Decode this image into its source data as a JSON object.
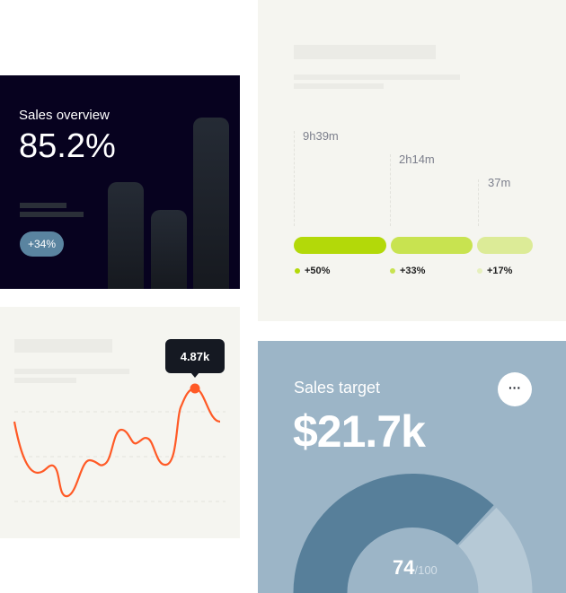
{
  "sales_overview": {
    "title": "Sales overview",
    "value": "85.2%",
    "badge": "+34%"
  },
  "line_card": {
    "tooltip": "4.87k",
    "line_color": "#ff5a26"
  },
  "time_card": {
    "items": [
      {
        "time": "9h39m",
        "change": "+50%",
        "color": "#b3d909"
      },
      {
        "time": "2h14m",
        "change": "+33%",
        "color": "#c8e350"
      },
      {
        "time": "37m",
        "change": "+17%",
        "color": "#dceb97"
      }
    ]
  },
  "sales_target": {
    "title": "Sales target",
    "value": "$21.7k",
    "menu_icon": "ellipsis-icon",
    "score": "74",
    "score_max": "/100",
    "progress": 0.74,
    "colors": {
      "filled": "#577f9a",
      "remaining": "#b6c9d6"
    }
  }
}
